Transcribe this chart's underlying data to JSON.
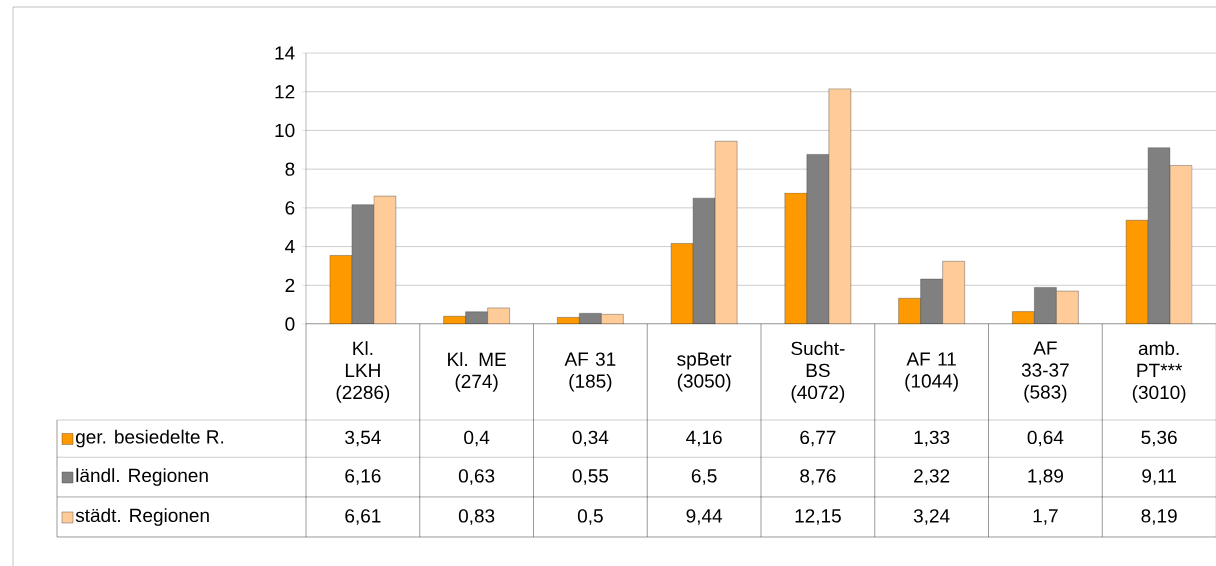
{
  "chart_data": {
    "type": "bar",
    "categories": [
      "Kl. LKH (2286)",
      "Kl. ME (274)",
      "AF 31 (185)",
      "spBetr (3050)",
      "Sucht-BS (4072)",
      "AF 11 (1044)",
      "AF 33-37 (583)",
      "amb. PT*** (3010)"
    ],
    "series": [
      {
        "name": "ger. besiedelte R.",
        "color": "#ff9900",
        "values": [
          3.54,
          0.4,
          0.34,
          4.16,
          6.77,
          1.33,
          0.64,
          5.36
        ],
        "value_labels": [
          "3,54",
          "0,4",
          "0,34",
          "4,16",
          "6,77",
          "1,33",
          "0,64",
          "5,36"
        ]
      },
      {
        "name": "ländl. Regionen",
        "color": "#808080",
        "values": [
          6.16,
          0.63,
          0.55,
          6.5,
          8.76,
          2.32,
          1.89,
          9.11
        ],
        "value_labels": [
          "6,16",
          "0,63",
          "0,55",
          "6,5",
          "8,76",
          "2,32",
          "1,89",
          "9,11"
        ]
      },
      {
        "name": "städt. Regionen",
        "color": "#ffcc99",
        "values": [
          6.61,
          0.83,
          0.5,
          9.44,
          12.15,
          3.24,
          1.7,
          8.19
        ],
        "value_labels": [
          "6,61",
          "0,83",
          "0,5",
          "9,44",
          "12,15",
          "3,24",
          "1,7",
          "8,19"
        ]
      }
    ],
    "ylim": [
      0,
      14
    ],
    "yticks": [
      0,
      2,
      4,
      6,
      8,
      10,
      12,
      14
    ],
    "grid": "y",
    "legend": "bottom left"
  }
}
